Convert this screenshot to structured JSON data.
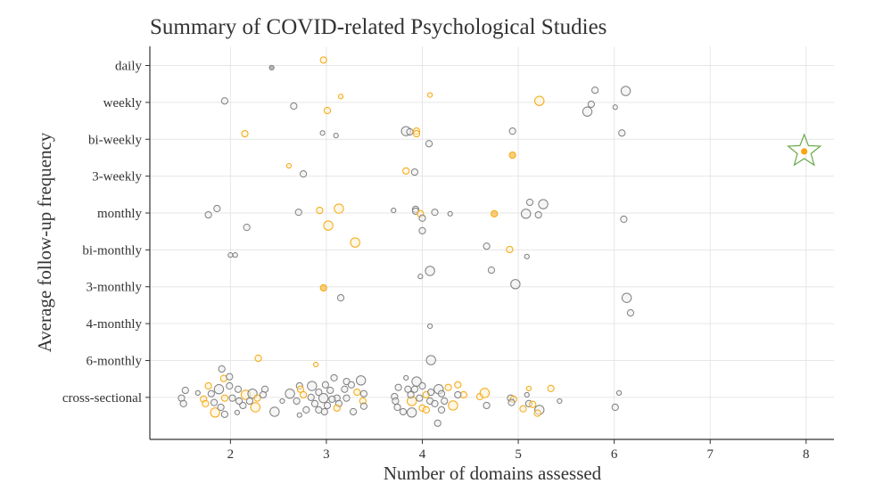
{
  "chart_data": {
    "type": "scatter",
    "title": "Summary of COVID-related Psychological Studies",
    "xlabel": "Number of domains assessed",
    "ylabel": "Average follow-up frequency",
    "xlim": [
      1.16,
      8.29
    ],
    "ylim": [
      -1.14,
      9.52
    ],
    "x_ticks": [
      2,
      3,
      4,
      5,
      6,
      7,
      8
    ],
    "y_categories": [
      "cross-sectional",
      "6-monthly",
      "4-monthly",
      "3-monthly",
      "bi-monthly",
      "monthly",
      "3-weekly",
      "bi-weekly",
      "weekly",
      "daily"
    ],
    "grid": true,
    "colors": {
      "gray": "#7f7f7f",
      "gray_fill": "#ececec",
      "orange": "#f5a70f",
      "orange_fill": "#fdf0cf",
      "star": "#6aaa4a"
    },
    "point_format": "[x, y (category index, jittered), size level 1-3, color: g=gray outline, o=orange outline, gs=gray solid, os=orange solid]",
    "points": [
      [
        2.43,
        8.94,
        1,
        "gs"
      ],
      [
        2.97,
        9.15,
        2,
        "o"
      ],
      [
        1.94,
        8.04,
        2,
        "g"
      ],
      [
        2.66,
        7.9,
        2,
        "g"
      ],
      [
        3.15,
        8.16,
        1,
        "o"
      ],
      [
        3.01,
        7.78,
        2,
        "o"
      ],
      [
        4.08,
        8.2,
        1,
        "o"
      ],
      [
        2.15,
        7.15,
        2,
        "o"
      ],
      [
        2.96,
        7.17,
        1,
        "g"
      ],
      [
        3.1,
        7.1,
        1,
        "g"
      ],
      [
        3.83,
        7.22,
        3,
        "g"
      ],
      [
        3.87,
        7.2,
        2,
        "g"
      ],
      [
        3.94,
        7.22,
        2,
        "o"
      ],
      [
        3.94,
        7.15,
        2,
        "o"
      ],
      [
        4.07,
        6.88,
        2,
        "g"
      ],
      [
        4.94,
        7.22,
        2,
        "g"
      ],
      [
        4.94,
        6.57,
        2,
        "os"
      ],
      [
        2.61,
        6.28,
        1,
        "o"
      ],
      [
        2.76,
        6.06,
        2,
        "g"
      ],
      [
        3.83,
        6.14,
        2,
        "o"
      ],
      [
        3.92,
        6.11,
        2,
        "g"
      ],
      [
        1.77,
        4.95,
        2,
        "g"
      ],
      [
        1.86,
        5.12,
        2,
        "g"
      ],
      [
        2.17,
        4.61,
        2,
        "g"
      ],
      [
        2.71,
        5.02,
        2,
        "g"
      ],
      [
        2.93,
        5.07,
        2,
        "o"
      ],
      [
        3.13,
        5.12,
        3,
        "o"
      ],
      [
        3.02,
        4.66,
        3,
        "o"
      ],
      [
        3.3,
        4.2,
        3,
        "o"
      ],
      [
        3.7,
        5.07,
        1,
        "g"
      ],
      [
        3.93,
        5.1,
        2,
        "g"
      ],
      [
        3.93,
        5.05,
        2,
        "g"
      ],
      [
        3.98,
        4.98,
        2,
        "o"
      ],
      [
        4.0,
        4.86,
        2,
        "g"
      ],
      [
        4.13,
        5.02,
        2,
        "g"
      ],
      [
        4.29,
        4.98,
        1,
        "g"
      ],
      [
        4.0,
        4.52,
        2,
        "g"
      ],
      [
        4.75,
        4.98,
        2,
        "os"
      ],
      [
        4.67,
        4.1,
        2,
        "g"
      ],
      [
        4.91,
        4.01,
        2,
        "o"
      ],
      [
        2.0,
        3.86,
        1,
        "g"
      ],
      [
        2.05,
        3.86,
        1,
        "g"
      ],
      [
        4.08,
        3.43,
        3,
        "g"
      ],
      [
        3.98,
        3.28,
        1,
        "g"
      ],
      [
        4.72,
        3.45,
        2,
        "g"
      ],
      [
        4.97,
        3.07,
        3,
        "g"
      ],
      [
        2.97,
        2.97,
        2,
        "os"
      ],
      [
        3.15,
        2.7,
        2,
        "g"
      ],
      [
        5.8,
        8.33,
        2,
        "g"
      ],
      [
        6.12,
        8.31,
        3,
        "g"
      ],
      [
        5.76,
        7.95,
        2,
        "g"
      ],
      [
        5.72,
        7.75,
        3,
        "g"
      ],
      [
        6.01,
        7.87,
        1,
        "g"
      ],
      [
        5.22,
        8.04,
        3,
        "o"
      ],
      [
        6.08,
        7.17,
        2,
        "g"
      ],
      [
        5.12,
        5.29,
        2,
        "g"
      ],
      [
        5.26,
        5.24,
        3,
        "g"
      ],
      [
        5.08,
        4.98,
        3,
        "g"
      ],
      [
        5.21,
        4.95,
        2,
        "g"
      ],
      [
        6.1,
        4.83,
        2,
        "g"
      ],
      [
        5.09,
        3.82,
        1,
        "g"
      ],
      [
        6.13,
        2.7,
        3,
        "g"
      ],
      [
        6.17,
        2.29,
        2,
        "g"
      ],
      [
        4.08,
        1.93,
        1,
        "g"
      ],
      [
        2.29,
        1.06,
        2,
        "o"
      ],
      [
        2.89,
        0.89,
        1,
        "o"
      ],
      [
        4.09,
        1.01,
        3,
        "g"
      ],
      [
        1.91,
        0.77,
        2,
        "g"
      ],
      [
        1.93,
        0.51,
        2,
        "o"
      ],
      [
        1.99,
        0.56,
        2,
        "g"
      ],
      [
        1.53,
        0.19,
        2,
        "g"
      ],
      [
        1.49,
        -0.02,
        2,
        "g"
      ],
      [
        1.51,
        -0.17,
        2,
        "g"
      ],
      [
        1.66,
        0.12,
        1,
        "g"
      ],
      [
        1.77,
        0.31,
        2,
        "o"
      ],
      [
        1.72,
        -0.05,
        2,
        "o"
      ],
      [
        1.74,
        -0.17,
        2,
        "o"
      ],
      [
        1.84,
        -0.41,
        3,
        "o"
      ],
      [
        1.88,
        0.22,
        3,
        "g"
      ],
      [
        1.94,
        -0.02,
        2,
        "o"
      ],
      [
        2.02,
        -0.02,
        2,
        "g"
      ],
      [
        2.08,
        0.22,
        2,
        "g"
      ],
      [
        2.16,
        0.07,
        3,
        "o"
      ],
      [
        2.23,
        0.1,
        3,
        "g"
      ],
      [
        2.28,
        -0.02,
        2,
        "o"
      ],
      [
        2.26,
        -0.27,
        3,
        "o"
      ],
      [
        2.36,
        0.22,
        2,
        "g"
      ],
      [
        2.34,
        0.07,
        2,
        "g"
      ],
      [
        2.46,
        -0.39,
        3,
        "g"
      ],
      [
        1.94,
        -0.46,
        2,
        "g"
      ],
      [
        2.07,
        -0.41,
        1,
        "g"
      ],
      [
        2.13,
        -0.22,
        2,
        "g"
      ],
      [
        1.9,
        -0.27,
        2,
        "g"
      ],
      [
        1.83,
        -0.14,
        2,
        "g"
      ],
      [
        1.8,
        0.1,
        2,
        "g"
      ],
      [
        1.99,
        0.31,
        2,
        "g"
      ],
      [
        2.09,
        -0.1,
        2,
        "g"
      ],
      [
        2.2,
        -0.1,
        2,
        "g"
      ],
      [
        2.54,
        -0.1,
        1,
        "g"
      ],
      [
        2.62,
        0.1,
        3,
        "g"
      ],
      [
        2.72,
        -0.48,
        1,
        "g"
      ],
      [
        2.72,
        0.31,
        2,
        "g"
      ],
      [
        2.76,
        0.07,
        2,
        "o"
      ],
      [
        2.73,
        0.22,
        2,
        "o"
      ],
      [
        2.85,
        0.31,
        3,
        "g"
      ],
      [
        2.92,
        0.14,
        2,
        "g"
      ],
      [
        2.88,
        -0.17,
        2,
        "g"
      ],
      [
        2.97,
        -0.02,
        3,
        "g"
      ],
      [
        2.99,
        0.34,
        2,
        "g"
      ],
      [
        3.08,
        0.53,
        2,
        "g"
      ],
      [
        3.04,
        0.19,
        2,
        "g"
      ],
      [
        3.11,
        -0.02,
        2,
        "g"
      ],
      [
        3.13,
        -0.17,
        2,
        "g"
      ],
      [
        3.11,
        -0.29,
        2,
        "o"
      ],
      [
        3.01,
        -0.22,
        2,
        "g"
      ],
      [
        2.98,
        -0.39,
        2,
        "g"
      ],
      [
        3.21,
        0.43,
        2,
        "g"
      ],
      [
        3.26,
        0.34,
        2,
        "g"
      ],
      [
        3.36,
        0.46,
        3,
        "g"
      ],
      [
        3.32,
        0.14,
        2,
        "o"
      ],
      [
        3.39,
        0.1,
        2,
        "g"
      ],
      [
        3.38,
        -0.1,
        2,
        "o"
      ],
      [
        3.39,
        -0.24,
        2,
        "g"
      ],
      [
        3.28,
        -0.39,
        2,
        "g"
      ],
      [
        3.21,
        -0.02,
        2,
        "g"
      ],
      [
        2.79,
        -0.34,
        2,
        "g"
      ],
      [
        2.69,
        -0.1,
        2,
        "g"
      ],
      [
        2.84,
        0,
        2,
        "g"
      ],
      [
        2.92,
        -0.34,
        2,
        "g"
      ],
      [
        3.06,
        -0.05,
        2,
        "g"
      ],
      [
        3.19,
        0.22,
        2,
        "g"
      ],
      [
        3.83,
        0.53,
        1,
        "g"
      ],
      [
        3.94,
        0.43,
        3,
        "g"
      ],
      [
        3.75,
        0.27,
        2,
        "g"
      ],
      [
        3.71,
        0.02,
        2,
        "g"
      ],
      [
        3.72,
        -0.1,
        2,
        "g"
      ],
      [
        3.74,
        -0.27,
        2,
        "g"
      ],
      [
        3.8,
        -0.39,
        2,
        "g"
      ],
      [
        3.89,
        -0.41,
        3,
        "g"
      ],
      [
        3.85,
        0.22,
        2,
        "g"
      ],
      [
        3.89,
        -0.1,
        3,
        "o"
      ],
      [
        3.88,
        0.07,
        2,
        "g"
      ],
      [
        3.92,
        0.22,
        2,
        "g"
      ],
      [
        4.0,
        0.31,
        2,
        "g"
      ],
      [
        4.04,
        0.07,
        2,
        "o"
      ],
      [
        4.08,
        -0.1,
        2,
        "g"
      ],
      [
        4.0,
        -0.29,
        2,
        "o"
      ],
      [
        4.04,
        -0.34,
        2,
        "o"
      ],
      [
        4.13,
        -0.17,
        2,
        "g"
      ],
      [
        4.17,
        0.22,
        3,
        "g"
      ],
      [
        4.2,
        0.1,
        2,
        "g"
      ],
      [
        4.23,
        -0.1,
        2,
        "g"
      ],
      [
        4.27,
        0.27,
        2,
        "o"
      ],
      [
        4.32,
        -0.22,
        3,
        "o"
      ],
      [
        4.37,
        0.34,
        2,
        "o"
      ],
      [
        4.43,
        0.07,
        2,
        "o"
      ],
      [
        4.37,
        0.07,
        2,
        "g"
      ],
      [
        4.2,
        -0.34,
        2,
        "g"
      ],
      [
        4.16,
        -0.7,
        2,
        "g"
      ],
      [
        3.97,
        -0.02,
        2,
        "g"
      ],
      [
        4.09,
        0.14,
        2,
        "g"
      ],
      [
        4.6,
        0.02,
        2,
        "o"
      ],
      [
        4.65,
        0.12,
        3,
        "o"
      ],
      [
        4.67,
        -0.22,
        2,
        "g"
      ],
      [
        4.92,
        -0.02,
        2,
        "g"
      ],
      [
        4.95,
        -0.05,
        2,
        "o"
      ],
      [
        4.93,
        -0.14,
        2,
        "g"
      ],
      [
        5.11,
        0.24,
        1,
        "o"
      ],
      [
        5.09,
        0.07,
        1,
        "g"
      ],
      [
        5.11,
        -0.17,
        2,
        "g"
      ],
      [
        5.15,
        -0.19,
        2,
        "o"
      ],
      [
        5.05,
        -0.31,
        2,
        "o"
      ],
      [
        5.22,
        -0.34,
        3,
        "g"
      ],
      [
        5.2,
        -0.43,
        2,
        "o"
      ],
      [
        5.34,
        0.24,
        2,
        "o"
      ],
      [
        5.43,
        -0.1,
        1,
        "g"
      ],
      [
        6.01,
        -0.27,
        2,
        "g"
      ],
      [
        6.05,
        0.12,
        1,
        "g"
      ]
    ],
    "highlight": {
      "x": 7.98,
      "y": 6.67,
      "marker": "star",
      "color": "os"
    }
  }
}
